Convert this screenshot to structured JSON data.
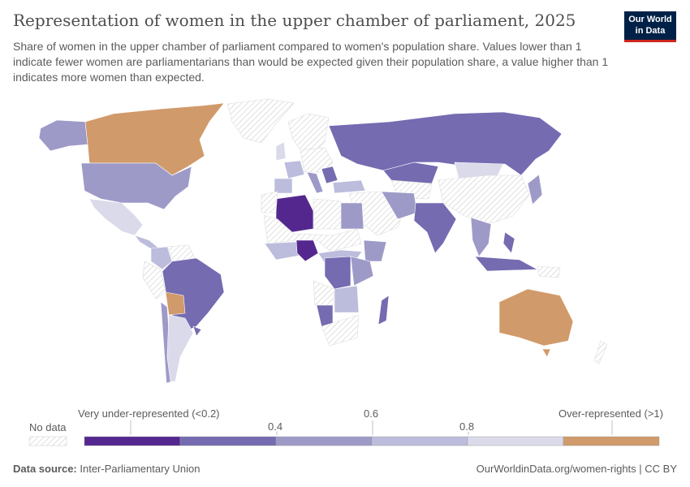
{
  "header": {
    "title": "Representation of women in the upper chamber of parliament, 2025",
    "subtitle": "Share of women in the upper chamber of parliament compared to women's population share. Values lower than 1 indicate fewer women are parliamentarians than would be expected given their population share, a value higher than 1 indicates more women than expected.",
    "logo_line1": "Our World",
    "logo_line2": "in Data"
  },
  "legend": {
    "no_data": "No data",
    "bins": [
      {
        "label": "Very under-represented (<0.2)",
        "color": "#54278f"
      },
      {
        "label": "",
        "color": "#756bb1"
      },
      {
        "label": "0.4",
        "color": "#9e9ac8"
      },
      {
        "label": "0.6",
        "color": "#bcbddc"
      },
      {
        "label": "0.8",
        "color": "#dadaeb"
      },
      {
        "label": "Over-represented (>1)",
        "color": "#d09a6a"
      }
    ],
    "tick_04": "0.4",
    "tick_06": "0.6",
    "tick_08": "0.8",
    "low_label": "Very under-represented (<0.2)",
    "high_label": "Over-represented (>1)"
  },
  "footer": {
    "source_label": "Data source:",
    "source": "Inter-Parliamentary Union",
    "url": "OurWorldinData.org/women-rights | CC BY"
  }
}
